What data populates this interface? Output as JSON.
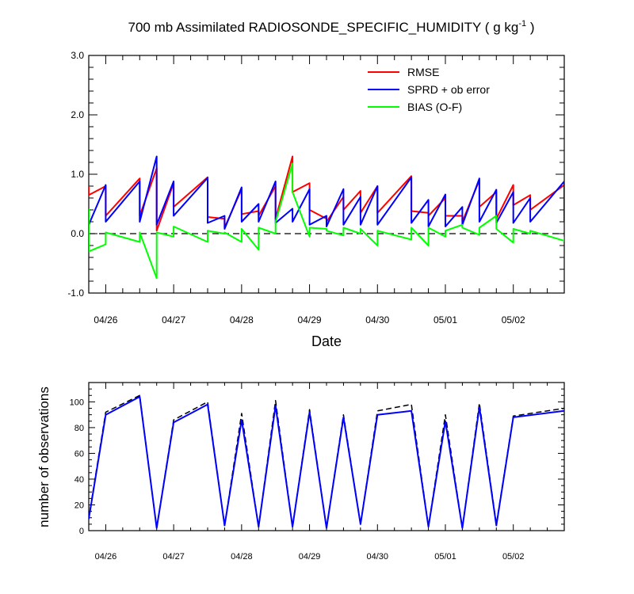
{
  "chart_data": [
    {
      "type": "line",
      "title": "700 mb Assimilated RADIOSONDE_SPECIFIC_HUMIDITY ( g kg",
      "title_superscript": "-1",
      "title_suffix": " )",
      "xlabel": "Date",
      "ylabel": "",
      "ylim": [
        -1.0,
        3.0
      ],
      "yticks": [
        "3.0",
        "2.0",
        "1.0",
        "0.0",
        "-1.0"
      ],
      "ytick_values": [
        3.0,
        2.0,
        1.0,
        0.0,
        -1.0
      ],
      "xlim": [
        0,
        28
      ],
      "x_units": "6-hourly steps from 04/25 18Z",
      "xtick_labels": [
        "04/26",
        "04/27",
        "04/28",
        "04/29",
        "04/30",
        "05/01",
        "05/02"
      ],
      "xtick_positions": [
        1,
        5,
        9,
        13,
        17,
        21,
        25
      ],
      "zero_line": "dashed",
      "legend": {
        "placement": "top-right",
        "entries": [
          "RMSE",
          "SPRD + ob error",
          "BIAS (O-F)"
        ]
      },
      "colors": {
        "rmse": "#ff0000",
        "sprd": "#0000ff",
        "bias": "#00ff00",
        "zero": "#000000"
      },
      "series": [
        {
          "name": "RMSE",
          "color": "#ff0000",
          "points": [
            [
              0.0,
              0.8
            ],
            [
              0.0,
              0.65
            ],
            [
              1.0,
              0.8
            ],
            [
              1.0,
              0.3
            ],
            [
              3.0,
              0.93
            ],
            [
              3.0,
              0.3
            ],
            [
              4.0,
              1.1
            ],
            [
              4.0,
              0.05
            ],
            [
              5.0,
              0.85
            ],
            [
              5.0,
              0.45
            ],
            [
              7.0,
              0.95
            ],
            [
              7.0,
              0.28
            ],
            [
              8.0,
              0.25
            ],
            [
              8.0,
              0.1
            ],
            [
              9.0,
              0.75
            ],
            [
              9.0,
              0.33
            ],
            [
              10.0,
              0.38
            ],
            [
              10.0,
              0.3
            ],
            [
              11.0,
              0.8
            ],
            [
              11.0,
              0.25
            ],
            [
              12.0,
              1.3
            ],
            [
              12.0,
              0.7
            ],
            [
              13.0,
              0.85
            ],
            [
              13.0,
              0.4
            ],
            [
              14.0,
              0.25
            ],
            [
              14.0,
              0.2
            ],
            [
              15.0,
              0.62
            ],
            [
              15.0,
              0.4
            ],
            [
              16.0,
              0.72
            ],
            [
              16.0,
              0.35
            ],
            [
              17.0,
              0.8
            ],
            [
              17.0,
              0.35
            ],
            [
              19.0,
              0.97
            ],
            [
              19.0,
              0.38
            ],
            [
              20.0,
              0.35
            ],
            [
              20.0,
              0.3
            ],
            [
              21.0,
              0.6
            ],
            [
              21.0,
              0.3
            ],
            [
              22.0,
              0.3
            ],
            [
              22.0,
              0.2
            ],
            [
              23.0,
              0.9
            ],
            [
              23.0,
              0.45
            ],
            [
              24.0,
              0.7
            ],
            [
              24.0,
              0.25
            ],
            [
              25.0,
              0.82
            ],
            [
              25.0,
              0.48
            ],
            [
              26.0,
              0.65
            ],
            [
              26.0,
              0.4
            ],
            [
              28.0,
              0.82
            ],
            [
              28.0,
              0.45
            ]
          ]
        },
        {
          "name": "SPRD + ob error",
          "color": "#0000ff",
          "points": [
            [
              0.0,
              0.35
            ],
            [
              0.0,
              0.15
            ],
            [
              1.0,
              0.82
            ],
            [
              1.0,
              0.2
            ],
            [
              3.0,
              0.88
            ],
            [
              3.0,
              0.2
            ],
            [
              4.0,
              1.3
            ],
            [
              4.0,
              0.15
            ],
            [
              5.0,
              0.88
            ],
            [
              5.0,
              0.3
            ],
            [
              7.0,
              0.94
            ],
            [
              7.0,
              0.18
            ],
            [
              8.0,
              0.3
            ],
            [
              8.0,
              0.08
            ],
            [
              9.0,
              0.78
            ],
            [
              9.0,
              0.2
            ],
            [
              10.0,
              0.5
            ],
            [
              10.0,
              0.2
            ],
            [
              11.0,
              0.88
            ],
            [
              11.0,
              0.18
            ],
            [
              12.0,
              0.42
            ],
            [
              12.0,
              0.2
            ],
            [
              13.0,
              0.75
            ],
            [
              13.0,
              0.15
            ],
            [
              14.0,
              0.3
            ],
            [
              14.0,
              0.12
            ],
            [
              15.0,
              0.75
            ],
            [
              15.0,
              0.15
            ],
            [
              16.0,
              0.62
            ],
            [
              16.0,
              0.15
            ],
            [
              17.0,
              0.8
            ],
            [
              17.0,
              0.15
            ],
            [
              19.0,
              0.95
            ],
            [
              19.0,
              0.18
            ],
            [
              20.0,
              0.57
            ],
            [
              20.0,
              0.12
            ],
            [
              21.0,
              0.66
            ],
            [
              21.0,
              0.12
            ],
            [
              22.0,
              0.45
            ],
            [
              22.0,
              0.15
            ],
            [
              23.0,
              0.93
            ],
            [
              23.0,
              0.2
            ],
            [
              24.0,
              0.74
            ],
            [
              24.0,
              0.18
            ],
            [
              25.0,
              0.7
            ],
            [
              25.0,
              0.18
            ],
            [
              26.0,
              0.6
            ],
            [
              26.0,
              0.2
            ],
            [
              28.0,
              0.88
            ],
            [
              28.0,
              0.2
            ]
          ]
        },
        {
          "name": "BIAS (O-F)",
          "color": "#00ff00",
          "points": [
            [
              0.0,
              0.42
            ],
            [
              0.0,
              -0.3
            ],
            [
              1.0,
              -0.18
            ],
            [
              1.0,
              0.02
            ],
            [
              3.0,
              -0.14
            ],
            [
              3.0,
              0.02
            ],
            [
              4.0,
              -0.75
            ],
            [
              4.0,
              0.02
            ],
            [
              5.0,
              -0.05
            ],
            [
              5.0,
              0.12
            ],
            [
              7.0,
              -0.14
            ],
            [
              7.0,
              0.05
            ],
            [
              8.0,
              0.0
            ],
            [
              8.0,
              0.02
            ],
            [
              9.0,
              -0.14
            ],
            [
              9.0,
              0.08
            ],
            [
              10.0,
              -0.27
            ],
            [
              10.0,
              0.1
            ],
            [
              11.0,
              0.0
            ],
            [
              11.0,
              0.2
            ],
            [
              12.0,
              1.18
            ],
            [
              12.0,
              0.7
            ],
            [
              13.0,
              -0.05
            ],
            [
              13.0,
              0.1
            ],
            [
              14.0,
              0.08
            ],
            [
              14.0,
              0.05
            ],
            [
              15.0,
              -0.03
            ],
            [
              15.0,
              0.1
            ],
            [
              16.0,
              0.0
            ],
            [
              16.0,
              0.08
            ],
            [
              17.0,
              -0.2
            ],
            [
              17.0,
              0.05
            ],
            [
              19.0,
              -0.1
            ],
            [
              19.0,
              0.1
            ],
            [
              20.0,
              -0.2
            ],
            [
              20.0,
              0.1
            ],
            [
              21.0,
              -0.05
            ],
            [
              21.0,
              0.05
            ],
            [
              22.0,
              0.15
            ],
            [
              22.0,
              0.1
            ],
            [
              23.0,
              -0.02
            ],
            [
              23.0,
              0.1
            ],
            [
              24.0,
              0.3
            ],
            [
              24.0,
              0.08
            ],
            [
              25.0,
              -0.15
            ],
            [
              25.0,
              0.08
            ],
            [
              26.0,
              0.0
            ],
            [
              26.0,
              0.05
            ],
            [
              28.0,
              -0.12
            ],
            [
              28.0,
              -0.05
            ]
          ]
        }
      ]
    },
    {
      "type": "line",
      "title": "",
      "xlabel": "",
      "ylabel": "number of observations",
      "ylim": [
        0,
        115
      ],
      "yticks": [
        "100",
        "80",
        "60",
        "40",
        "20",
        "0"
      ],
      "ytick_values": [
        100,
        80,
        60,
        40,
        20,
        0
      ],
      "xlim": [
        0,
        28
      ],
      "xtick_labels": [
        "04/26",
        "04/27",
        "04/28",
        "04/29",
        "04/30",
        "05/01",
        "05/02"
      ],
      "xtick_positions": [
        1,
        5,
        9,
        13,
        17,
        21,
        25
      ],
      "colors": {
        "used": "#0000ff",
        "possible": "#000000"
      },
      "series": [
        {
          "name": "",
          "color": "#000000",
          "style": "dashed",
          "points": [
            [
              0,
              10
            ],
            [
              1,
              92
            ],
            [
              3,
              105
            ],
            [
              4,
              2
            ],
            [
              5,
              86
            ],
            [
              7,
              100
            ],
            [
              8,
              4
            ],
            [
              9,
              91
            ],
            [
              10,
              3
            ],
            [
              11,
              101
            ],
            [
              12,
              3
            ],
            [
              13,
              94
            ],
            [
              14,
              2
            ],
            [
              15,
              90
            ],
            [
              16,
              5
            ],
            [
              17,
              93
            ],
            [
              19,
              98
            ],
            [
              20,
              3
            ],
            [
              21,
              90
            ],
            [
              22,
              2
            ],
            [
              23,
              99
            ],
            [
              24,
              5
            ],
            [
              25,
              89
            ],
            [
              28,
              95
            ]
          ]
        },
        {
          "name": "",
          "color": "#0000ff",
          "style": "solid",
          "points": [
            [
              0,
              9
            ],
            [
              1,
              90
            ],
            [
              3,
              104
            ],
            [
              4,
              2
            ],
            [
              5,
              84
            ],
            [
              7,
              98
            ],
            [
              8,
              4
            ],
            [
              9,
              86
            ],
            [
              10,
              3
            ],
            [
              11,
              97
            ],
            [
              12,
              3
            ],
            [
              13,
              92
            ],
            [
              14,
              2
            ],
            [
              15,
              88
            ],
            [
              16,
              5
            ],
            [
              17,
              90
            ],
            [
              19,
              93
            ],
            [
              20,
              3
            ],
            [
              21,
              85
            ],
            [
              22,
              2
            ],
            [
              23,
              96
            ],
            [
              24,
              4
            ],
            [
              25,
              88
            ],
            [
              28,
              93
            ]
          ]
        }
      ]
    }
  ]
}
